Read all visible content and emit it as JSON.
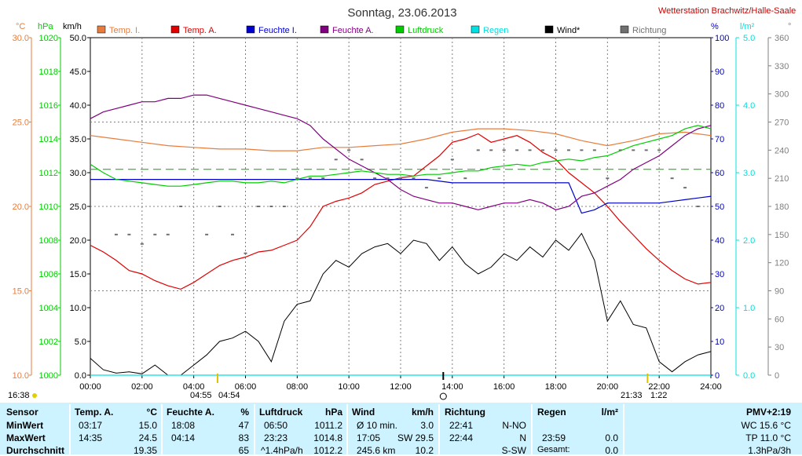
{
  "title": "Sonntag, 23.06.2013",
  "station": "Wetterstation Brachwitz/Halle-Saale",
  "colors": {
    "temp_i": "#e87c3c",
    "temp_a": "#e00000",
    "feuchte_i": "#0000cc",
    "feuchte_a": "#800080",
    "luftdruck": "#00cc00",
    "regen": "#00e0e0",
    "wind": "#000000",
    "richtung": "#707070"
  },
  "legend": [
    "Temp. I.",
    "Temp. A.",
    "Feuchte I.",
    "Feuchte A.",
    "Luftdruck",
    "Regen",
    "Wind*",
    "Richtung"
  ],
  "axis_units": {
    "temp": "°C",
    "hpa": "hPa",
    "kmh": "km/h",
    "percent": "%",
    "rain": "l/m²",
    "dir": "°"
  },
  "chart_data": {
    "type": "line",
    "title": "Sonntag, 23.06.2013",
    "x_ticks": [
      "00:00",
      "02:00",
      "04:00",
      "06:00",
      "08:00",
      "10:00",
      "12:00",
      "14:00",
      "16:00",
      "18:00",
      "20:00",
      "22:00",
      "24:00"
    ],
    "x_range_hours": [
      0,
      24
    ],
    "axes": {
      "temp_c": {
        "range": [
          10,
          30
        ],
        "ticks": [
          "10.0",
          "15.0",
          "20.0",
          "25.0",
          "30.0"
        ]
      },
      "pressure_hpa": {
        "range": [
          1000,
          1020
        ],
        "ticks": [
          "1000",
          "1002",
          "1004",
          "1006",
          "1008",
          "1010",
          "1012",
          "1014",
          "1016",
          "1018",
          "1020"
        ]
      },
      "wind_kmh": {
        "range": [
          0,
          50
        ],
        "ticks": [
          "0.0",
          "5.0",
          "10.0",
          "15.0",
          "20.0",
          "25.0",
          "30.0",
          "35.0",
          "40.0",
          "45.0",
          "50.0"
        ]
      },
      "humidity_pct": {
        "range": [
          0,
          100
        ],
        "ticks": [
          "0",
          "10",
          "20",
          "30",
          "40",
          "50",
          "60",
          "70",
          "80",
          "90",
          "100"
        ]
      },
      "rain_lm2": {
        "range": [
          0,
          5
        ],
        "ticks": [
          "0.0",
          "1.0",
          "2.0",
          "3.0",
          "4.0",
          "5.0"
        ]
      },
      "direction_deg": {
        "range": [
          0,
          360
        ],
        "ticks": [
          "0",
          "30",
          "60",
          "90",
          "120",
          "150",
          "180",
          "210",
          "240",
          "270",
          "300",
          "330",
          "360"
        ]
      }
    },
    "series": [
      {
        "name": "Temp. I.",
        "axis": "temp_c",
        "x": [
          0,
          1,
          2,
          3,
          4,
          5,
          6,
          7,
          8,
          9,
          10,
          11,
          12,
          13,
          14,
          15,
          16,
          17,
          18,
          19,
          20,
          21,
          22,
          23,
          24
        ],
        "values": [
          24.2,
          24.0,
          23.8,
          23.6,
          23.5,
          23.4,
          23.4,
          23.3,
          23.3,
          23.5,
          23.5,
          23.6,
          23.7,
          24.0,
          24.4,
          24.6,
          24.6,
          24.5,
          24.3,
          23.9,
          23.6,
          23.9,
          24.3,
          24.4,
          24.2
        ]
      },
      {
        "name": "Temp. A.",
        "axis": "temp_c",
        "x": [
          0,
          0.5,
          1,
          1.5,
          2,
          2.5,
          3,
          3.5,
          4,
          4.5,
          5,
          5.5,
          6,
          6.5,
          7,
          7.5,
          8,
          8.5,
          9,
          9.5,
          10,
          10.5,
          11,
          11.5,
          12,
          12.5,
          13,
          13.5,
          14,
          14.5,
          15,
          15.5,
          16,
          16.5,
          17,
          17.5,
          18,
          18.5,
          19,
          19.5,
          20,
          20.5,
          21,
          21.5,
          22,
          22.5,
          23,
          23.5,
          24
        ],
        "values": [
          17.7,
          17.3,
          16.8,
          16.2,
          16.0,
          15.6,
          15.3,
          15.1,
          15.5,
          16.0,
          16.5,
          16.8,
          17.0,
          17.3,
          17.4,
          17.7,
          18.0,
          18.8,
          20.0,
          20.3,
          20.5,
          20.8,
          21.3,
          21.5,
          21.7,
          21.8,
          22.4,
          23.0,
          23.8,
          24.0,
          24.3,
          23.8,
          24.0,
          24.2,
          23.8,
          23.2,
          22.8,
          22.0,
          21.4,
          20.8,
          20.0,
          19.1,
          18.3,
          17.5,
          16.8,
          16.2,
          15.7,
          15.4,
          15.5
        ]
      },
      {
        "name": "Feuchte I.",
        "axis": "humidity_pct",
        "x": [
          0,
          2,
          4,
          6,
          8,
          10,
          12,
          13,
          14,
          15,
          16,
          17,
          18,
          18.5,
          19,
          19.5,
          20,
          21,
          22,
          23,
          24
        ],
        "values": [
          58,
          58,
          58,
          58,
          58,
          58,
          58,
          58,
          57,
          57,
          57,
          57,
          57,
          57,
          48,
          49,
          51,
          51,
          51,
          52,
          53
        ]
      },
      {
        "name": "Feuchte A.",
        "axis": "humidity_pct",
        "x": [
          0,
          0.5,
          1,
          1.5,
          2,
          2.5,
          3,
          3.5,
          4,
          4.5,
          5,
          5.5,
          6,
          6.5,
          7,
          7.5,
          8,
          8.5,
          9,
          9.5,
          10,
          10.5,
          11,
          11.5,
          12,
          12.5,
          13,
          13.5,
          14,
          14.5,
          15,
          15.5,
          16,
          16.5,
          17,
          17.5,
          18,
          18.5,
          19,
          19.5,
          20,
          20.5,
          21,
          21.5,
          22,
          22.5,
          23,
          23.5,
          24
        ],
        "values": [
          76,
          78,
          79,
          80,
          81,
          81,
          82,
          82,
          83,
          83,
          82,
          81,
          80,
          79,
          78,
          77,
          76,
          74,
          70,
          67,
          64,
          62,
          60,
          58,
          55,
          53,
          52,
          51,
          51,
          50,
          49,
          50,
          51,
          51,
          52,
          51,
          49,
          50,
          53,
          54,
          56,
          58,
          61,
          63,
          65,
          68,
          71,
          73,
          74
        ]
      },
      {
        "name": "Luftdruck",
        "axis": "pressure_hpa",
        "x": [
          0,
          0.5,
          1,
          1.5,
          2,
          2.5,
          3,
          3.5,
          4,
          4.5,
          5,
          5.5,
          6,
          6.5,
          7,
          7.5,
          8,
          8.5,
          9,
          9.5,
          10,
          10.5,
          11,
          11.5,
          12,
          12.5,
          13,
          13.5,
          14,
          14.5,
          15,
          15.5,
          16,
          16.5,
          17,
          17.5,
          18,
          18.5,
          19,
          19.5,
          20,
          20.5,
          21,
          21.5,
          22,
          22.5,
          23,
          23.5,
          24
        ],
        "values": [
          1012.5,
          1012.0,
          1011.6,
          1011.5,
          1011.4,
          1011.3,
          1011.2,
          1011.2,
          1011.3,
          1011.4,
          1011.5,
          1011.5,
          1011.4,
          1011.4,
          1011.5,
          1011.4,
          1011.6,
          1011.8,
          1011.8,
          1011.9,
          1012.0,
          1012.1,
          1012.0,
          1011.9,
          1011.9,
          1011.8,
          1011.9,
          1011.9,
          1012.0,
          1012.1,
          1012.1,
          1012.3,
          1012.4,
          1012.5,
          1012.4,
          1012.6,
          1012.7,
          1012.8,
          1012.7,
          1012.9,
          1013.0,
          1013.3,
          1013.6,
          1013.8,
          1014.0,
          1014.2,
          1014.6,
          1014.8,
          1014.6
        ]
      },
      {
        "name": "Wind*",
        "axis": "wind_kmh",
        "x": [
          0,
          0.5,
          1,
          1.5,
          2,
          2.5,
          3,
          3.5,
          4,
          4.5,
          5,
          5.5,
          6,
          6.5,
          7,
          7.5,
          8,
          8.5,
          9,
          9.5,
          10,
          10.5,
          11,
          11.5,
          12,
          12.5,
          13,
          13.5,
          14,
          14.5,
          15,
          15.5,
          16,
          16.5,
          17,
          17.5,
          18,
          18.5,
          19,
          19.5,
          20,
          20.5,
          21,
          21.5,
          22,
          22.5,
          23,
          23.5,
          24
        ],
        "values": [
          2.5,
          0.8,
          0.3,
          0.5,
          0.2,
          1.5,
          0.0,
          0.0,
          1.5,
          3.0,
          5.0,
          5.5,
          6.5,
          5.0,
          2.0,
          8.0,
          10.5,
          11.0,
          15.0,
          17.0,
          16.0,
          18.0,
          19.0,
          19.5,
          18.0,
          20.0,
          19.5,
          17.0,
          19.0,
          16.5,
          15.0,
          16.0,
          18.0,
          17.0,
          19.0,
          17.5,
          20.0,
          18.5,
          21.0,
          17.0,
          8.0,
          11.0,
          7.5,
          7.0,
          2.0,
          0.5,
          2.0,
          3.0,
          3.5
        ]
      },
      {
        "name": "Richtung",
        "axis": "direction_deg",
        "style": "dots",
        "x": [
          1,
          1.5,
          2,
          2.5,
          3,
          3.5,
          4.5,
          5,
          5.5,
          6,
          6.5,
          7,
          7.5,
          8,
          8.5,
          9,
          9.5,
          10,
          10.5,
          11,
          11.5,
          12,
          12.5,
          13,
          13.5,
          14,
          14.5,
          15,
          15.5,
          16,
          16.5,
          17,
          17.5,
          18,
          18.5,
          19,
          19.5,
          20,
          20.5,
          21,
          21.5,
          22,
          22.5,
          23,
          23.5
        ],
        "values": [
          150,
          150,
          140,
          150,
          150,
          180,
          150,
          180,
          150,
          130,
          180,
          180,
          180,
          210,
          210,
          210,
          230,
          240,
          230,
          210,
          210,
          210,
          210,
          200,
          210,
          230,
          210,
          240,
          240,
          240,
          240,
          240,
          240,
          240,
          240,
          240,
          240,
          210,
          240,
          240,
          240,
          240,
          210,
          200,
          180
        ]
      },
      {
        "name": "Regen",
        "axis": "rain_lm2",
        "x": [
          0,
          24
        ],
        "values": [
          0.0,
          0.0
        ]
      }
    ],
    "reference_lines": [
      {
        "name": "Luftdruck Durchschnitt",
        "axis": "pressure_hpa",
        "value": 1012.2,
        "style": "dashed"
      }
    ],
    "markers": {
      "left_time": "16:38",
      "sunrise_label": "04:55",
      "sunrise_label2": "04:54",
      "sunset_label": "21:33",
      "sunset_label2": "1:22",
      "sunrise_hour": 4.92,
      "sunset_hour": 21.55,
      "noon_hour": 13.65
    }
  },
  "table": {
    "headers": {
      "sensor": "Sensor",
      "temp_a": "Temp. A.",
      "temp_unit": "°C",
      "feuchte": "Feuchte A.",
      "feuchte_unit": "%",
      "luftdruck": "Luftdruck",
      "luftdruck_unit": "hPa",
      "wind": "Wind",
      "wind_unit": "km/h",
      "richtung": "Richtung",
      "regen": "Regen",
      "regen_unit": "l/m²",
      "pmv": "PMV+2:19"
    },
    "rows": [
      {
        "label": "MinWert",
        "temp_time": "03:17",
        "temp_val": "15.0",
        "feuchte_time": "18:08",
        "feuchte_val": "47",
        "druck_time": "06:50",
        "druck_val": "1011.2",
        "wind_time": "Ø 10 min.",
        "wind_val": "3.0",
        "dir_time": "22:41",
        "dir_val": "N-NO",
        "regen_time": "",
        "regen_val": "",
        "pmv": "WC 15.6 °C"
      },
      {
        "label": "MaxWert",
        "temp_time": "14:35",
        "temp_val": "24.5",
        "feuchte_time": "04:14",
        "feuchte_val": "83",
        "druck_time": "23:23",
        "druck_val": "1014.8",
        "wind_time": "17:05",
        "wind_mid": "SW 29.5",
        "wind_val": "",
        "dir_time": "22:44",
        "dir_val": "N",
        "regen_time": "23:59",
        "regen_val": "0.0",
        "pmv": "TP 11.0 °C"
      },
      {
        "label": "Durchschnitt",
        "temp_time": "",
        "temp_val": "19.35",
        "feuchte_time": "",
        "feuchte_val": "65",
        "druck_time": "^1.4hPa/h",
        "druck_val": "1012.2",
        "wind_time": "245.6 km",
        "wind_val": "10.2",
        "dir_time": "",
        "dir_val": "S-SW",
        "regen_time": "Gesamt:",
        "regen_val": "0.0",
        "pmv": "1.3hPa/3h"
      }
    ]
  }
}
